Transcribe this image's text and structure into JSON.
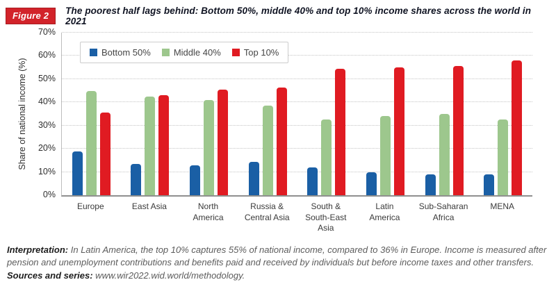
{
  "header": {
    "figure_label": "Figure 2",
    "title": "The poorest half lags behind: Bottom 50%, middle 40% and top 10% income shares across the world in 2021"
  },
  "chart_data": {
    "type": "bar",
    "title": "The poorest half lags behind: Bottom 50%, middle 40% and top 10% income shares across the world in 2021",
    "xlabel": "",
    "ylabel": "Share of national income (%)",
    "ylim": [
      0,
      70
    ],
    "yticks": [
      0,
      10,
      20,
      30,
      40,
      50,
      60,
      70
    ],
    "ytick_suffix": "%",
    "grid": "horizontal-dotted",
    "legend_position": "top-left-inside",
    "categories": [
      "Europe",
      "East Asia",
      "North\nAmerica",
      "Russia &\nCentral Asia",
      "South &\nSouth-East\nAsia",
      "Latin\nAmerica",
      "Sub-Saharan\nAfrica",
      "MENA"
    ],
    "series": [
      {
        "name": "Bottom 50%",
        "color": "#1a5fa5",
        "values": [
          19,
          13.5,
          13,
          14.5,
          12,
          10,
          9,
          9
        ]
      },
      {
        "name": "Middle 40%",
        "color": "#9dc78d",
        "values": [
          45,
          42.5,
          41,
          38.5,
          32.5,
          34,
          35,
          32.5
        ]
      },
      {
        "name": "Top 10%",
        "color": "#e01b22",
        "values": [
          35.5,
          43,
          45.5,
          46.5,
          54.5,
          55,
          55.5,
          58
        ]
      }
    ]
  },
  "footer": {
    "interpretation_label": "Interpretation:",
    "interpretation_text": " In Latin America, the top 10% captures 55% of national income, compared to 36% in Europe. Income is measured after pension and unemployment contributions and benefits paid and received by individuals but before income taxes and other transfers. ",
    "sources_label": "Sources and series:",
    "sources_text": " www.wir2022.wid.world/methodology."
  },
  "colors": {
    "figure_badge_bg": "#d2232a",
    "figure_badge_text": "#ffffff",
    "bottom50_blue": "#1a5fa5",
    "middle40_green": "#9dc78d",
    "top10_red": "#e01b22",
    "gridline_gray": "#c4c4c4",
    "axis_gray": "#8f8f8f"
  }
}
